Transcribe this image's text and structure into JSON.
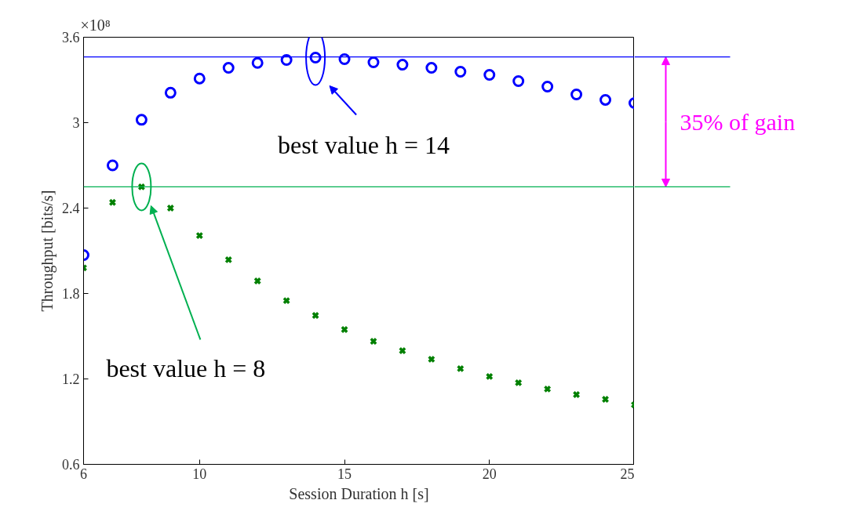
{
  "chart_data": {
    "type": "scatter",
    "xlabel": "Session Duration h [s]",
    "ylabel": "Throughput [bits/s]",
    "x": [
      6,
      7,
      8,
      9,
      10,
      11,
      12,
      13,
      14,
      15,
      16,
      17,
      18,
      19,
      20,
      21,
      22,
      23,
      24,
      25
    ],
    "xlim": [
      6,
      25
    ],
    "xticks": [
      6,
      10,
      15,
      20,
      25
    ],
    "ylim": [
      0.6,
      3.6
    ],
    "yticks": [
      0.6,
      1.2,
      1.8,
      2.4,
      3,
      3.6
    ],
    "series": [
      {
        "color": "#0000ff",
        "marker": "circle",
        "values": [
          2.07,
          2.7,
          3.02,
          3.21,
          3.31,
          3.385,
          3.42,
          3.44,
          3.457,
          3.446,
          3.424,
          3.407,
          3.385,
          3.358,
          3.336,
          3.292,
          3.253,
          3.198,
          3.16,
          3.138
        ]
      },
      {
        "color": "#008000",
        "marker": "cross",
        "values": [
          1.98,
          2.44,
          2.549,
          2.4,
          2.207,
          2.037,
          1.888,
          1.75,
          1.646,
          1.547,
          1.464,
          1.398,
          1.338,
          1.272,
          1.217,
          1.173,
          1.129,
          1.09,
          1.057,
          1.018
        ]
      }
    ],
    "ref_lines": [
      {
        "axis": "y",
        "value": 3.462,
        "color": "#0000ff"
      },
      {
        "axis": "y",
        "value": 2.549,
        "color": "#00b050"
      }
    ],
    "annotations": [
      "×10⁸",
      "best value h = 14",
      "best value h = 8",
      "35% of gain"
    ],
    "grid": false
  }
}
